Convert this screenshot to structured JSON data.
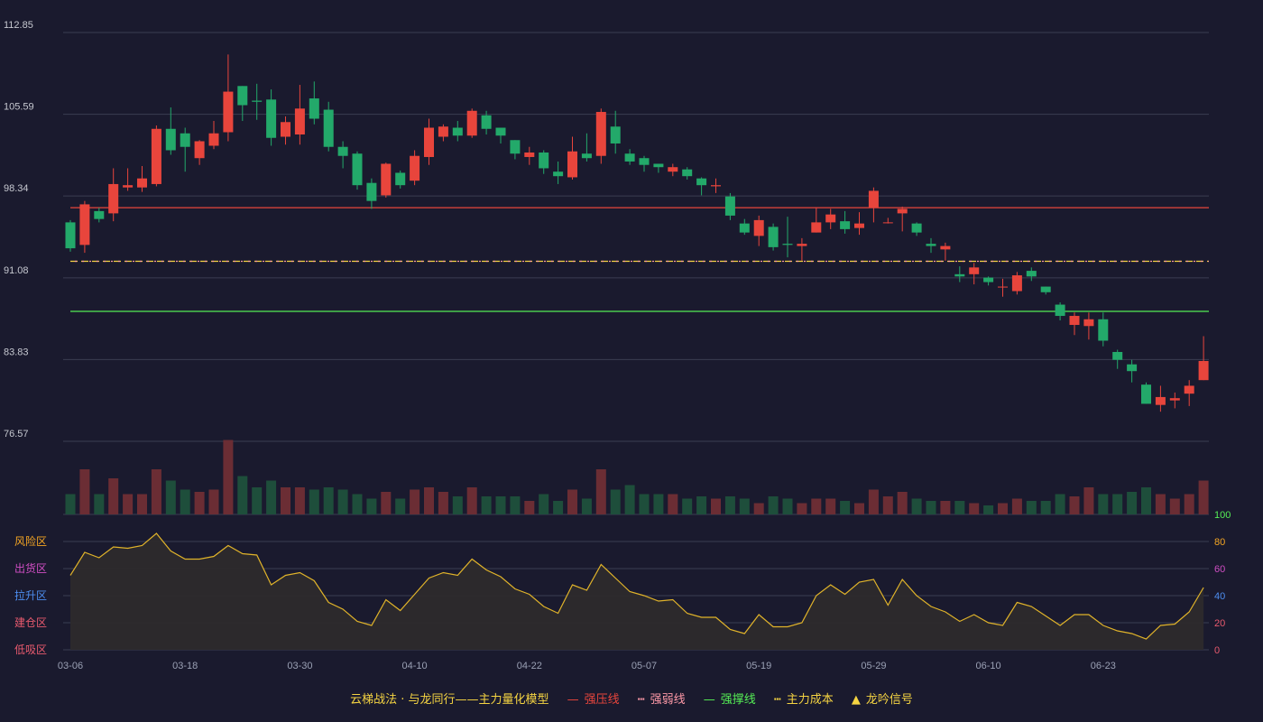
{
  "chart_data": {
    "type": "candlestick",
    "price_axis": {
      "ticks": [
        "112.85",
        "105.59",
        "98.34",
        "91.08",
        "83.83",
        "76.57"
      ],
      "min": 76.57,
      "max": 112.85
    },
    "date_ticks": [
      {
        "label": "03-06",
        "index": 0
      },
      {
        "label": "03-18",
        "index": 8
      },
      {
        "label": "03-30",
        "index": 16
      },
      {
        "label": "04-10",
        "index": 24
      },
      {
        "label": "04-22",
        "index": 32
      },
      {
        "label": "05-07",
        "index": 40
      },
      {
        "label": "05-19",
        "index": 48
      },
      {
        "label": "05-29",
        "index": 56
      },
      {
        "label": "06-10",
        "index": 64
      },
      {
        "label": "06-23",
        "index": 72
      }
    ],
    "levels": [
      {
        "name": "强压线",
        "value": 97.3,
        "color": "#e8453c",
        "style": "solid"
      },
      {
        "name": "主力成本",
        "value": 92.55,
        "color": "#f5d442",
        "style": "dash"
      },
      {
        "name": "强弱线",
        "value": 92.55,
        "color": "#ff9aa8",
        "style": "dot"
      },
      {
        "name": "强撑线",
        "value": 88.1,
        "color": "#55ee55",
        "style": "solid"
      }
    ],
    "candles": [
      [
        96.0,
        93.7,
        96.2,
        93.4
      ],
      [
        94.0,
        97.6,
        97.9,
        93.3
      ],
      [
        97.0,
        96.3,
        97.3,
        96.0
      ],
      [
        96.8,
        99.4,
        100.8,
        96.1
      ],
      [
        99.1,
        99.3,
        100.8,
        98.8
      ],
      [
        99.1,
        99.9,
        101.0,
        98.7
      ],
      [
        99.4,
        104.3,
        104.6,
        99.2
      ],
      [
        104.3,
        102.4,
        106.2,
        102.0
      ],
      [
        103.9,
        102.7,
        104.4,
        100.5
      ],
      [
        101.7,
        103.2,
        103.3,
        101.1
      ],
      [
        102.8,
        103.9,
        105.0,
        102.5
      ],
      [
        104.0,
        107.6,
        110.9,
        103.2
      ],
      [
        108.1,
        106.4,
        108.1,
        105.0
      ],
      [
        106.8,
        106.7,
        108.3,
        105.1
      ],
      [
        106.9,
        103.5,
        107.8,
        102.8
      ],
      [
        103.6,
        104.9,
        105.4,
        102.9
      ],
      [
        103.8,
        106.1,
        108.2,
        102.9
      ],
      [
        107.0,
        105.2,
        108.5,
        104.7
      ],
      [
        106.0,
        102.7,
        106.7,
        102.3
      ],
      [
        102.7,
        101.9,
        103.2,
        100.8
      ],
      [
        102.1,
        99.3,
        102.3,
        98.9
      ],
      [
        99.5,
        97.9,
        99.9,
        97.2
      ],
      [
        98.4,
        101.2,
        101.3,
        98.2
      ],
      [
        100.4,
        99.3,
        100.6,
        99.0
      ],
      [
        99.7,
        101.9,
        102.4,
        99.3
      ],
      [
        101.8,
        104.4,
        105.2,
        101.1
      ],
      [
        103.6,
        104.5,
        104.7,
        103.2
      ],
      [
        104.4,
        103.7,
        105.0,
        103.2
      ],
      [
        103.7,
        105.9,
        106.1,
        103.5
      ],
      [
        105.5,
        104.3,
        105.9,
        103.8
      ],
      [
        104.4,
        103.7,
        104.4,
        103.0
      ],
      [
        103.3,
        102.1,
        103.3,
        101.6
      ],
      [
        101.8,
        102.2,
        102.7,
        101.1
      ],
      [
        102.2,
        100.8,
        102.4,
        100.3
      ],
      [
        100.5,
        100.1,
        101.4,
        99.4
      ],
      [
        100.0,
        102.3,
        103.6,
        99.8
      ],
      [
        102.1,
        101.7,
        103.9,
        101.4
      ],
      [
        101.9,
        105.8,
        106.1,
        101.2
      ],
      [
        104.5,
        103.0,
        105.9,
        102.1
      ],
      [
        102.1,
        101.4,
        102.5,
        101.1
      ],
      [
        101.7,
        101.1,
        101.9,
        100.5
      ],
      [
        101.2,
        100.9,
        101.2,
        100.4
      ],
      [
        100.5,
        100.9,
        101.2,
        100.1
      ],
      [
        100.7,
        100.1,
        100.9,
        99.8
      ],
      [
        99.9,
        99.3,
        100.0,
        98.4
      ],
      [
        99.2,
        99.3,
        99.9,
        98.6
      ],
      [
        98.3,
        96.6,
        98.6,
        96.2
      ],
      [
        95.9,
        95.1,
        96.3,
        94.9
      ],
      [
        94.8,
        96.2,
        96.6,
        93.9
      ],
      [
        95.6,
        93.8,
        95.9,
        93.5
      ],
      [
        94.1,
        94.0,
        96.5,
        92.9
      ],
      [
        93.9,
        94.1,
        94.6,
        92.6
      ],
      [
        95.1,
        96.0,
        97.3,
        95.1
      ],
      [
        96.0,
        96.7,
        97.2,
        95.4
      ],
      [
        96.1,
        95.4,
        97.0,
        95.0
      ],
      [
        95.5,
        95.9,
        96.9,
        94.9
      ],
      [
        97.3,
        98.8,
        99.1,
        96.0
      ],
      [
        96.0,
        96.0,
        96.4,
        95.9
      ],
      [
        96.8,
        97.2,
        97.4,
        95.2
      ],
      [
        95.9,
        95.1,
        96.0,
        94.8
      ],
      [
        94.1,
        93.9,
        94.6,
        93.3
      ],
      [
        93.6,
        93.9,
        94.2,
        92.6
      ],
      [
        91.4,
        91.2,
        92.1,
        90.7
      ],
      [
        91.4,
        92.0,
        92.4,
        90.5
      ],
      [
        91.1,
        90.7,
        91.2,
        90.4
      ],
      [
        90.3,
        90.3,
        91.0,
        89.4
      ],
      [
        89.9,
        91.3,
        91.6,
        89.6
      ],
      [
        91.7,
        91.2,
        92.0,
        90.8
      ],
      [
        90.3,
        89.8,
        90.3,
        89.6
      ],
      [
        88.7,
        87.7,
        88.9,
        87.3
      ],
      [
        86.9,
        87.7,
        88.0,
        86.0
      ],
      [
        86.8,
        87.4,
        88.0,
        85.6
      ],
      [
        87.4,
        85.5,
        88.0,
        85.0
      ],
      [
        84.5,
        83.8,
        84.7,
        83.0
      ],
      [
        83.4,
        82.8,
        83.8,
        81.8
      ],
      [
        81.6,
        79.9,
        81.8,
        79.9
      ],
      [
        79.8,
        80.5,
        81.5,
        79.2
      ],
      [
        80.2,
        80.4,
        80.9,
        79.5
      ],
      [
        80.8,
        81.5,
        82.0,
        79.7
      ],
      [
        82.0,
        83.7,
        85.9,
        82.0
      ]
    ],
    "volume": [
      9,
      20,
      9,
      16,
      9,
      9,
      20,
      15,
      11,
      10,
      11,
      33,
      17,
      12,
      15,
      12,
      12,
      11,
      12,
      11,
      9,
      7,
      10,
      7,
      11,
      12,
      10,
      8,
      12,
      8,
      8,
      8,
      6,
      9,
      6,
      11,
      7,
      20,
      11,
      13,
      9,
      9,
      9,
      7,
      8,
      7,
      8,
      7,
      5,
      8,
      7,
      5,
      7,
      7,
      6,
      5,
      11,
      8,
      10,
      7,
      6,
      6,
      6,
      5,
      4,
      5,
      7,
      6,
      6,
      9,
      8,
      12,
      9,
      9,
      10,
      12,
      9,
      7,
      9,
      15
    ],
    "risk_axis": {
      "ticks": [
        "0",
        "20",
        "40",
        "60",
        "80",
        "100"
      ],
      "min": 0,
      "max": 100
    },
    "risk_zones": [
      {
        "label": "风险区",
        "color": "#f5a623",
        "value": 80
      },
      {
        "label": "出货区",
        "color": "#d04ec4",
        "value": 60
      },
      {
        "label": "拉升区",
        "color": "#4d8ef0",
        "value": 40
      },
      {
        "label": "建仓区",
        "color": "#e85a6e",
        "value": 20
      },
      {
        "label": "低吸区",
        "color": "#e85a6e",
        "value": 0
      }
    ],
    "risk_line": [
      55,
      72,
      68,
      76,
      75,
      77,
      86,
      73,
      67,
      67,
      69,
      77,
      71,
      70,
      48,
      55,
      57,
      51,
      35,
      30,
      21,
      18,
      37,
      29,
      41,
      53,
      57,
      55,
      67,
      59,
      54,
      45,
      41,
      32,
      27,
      48,
      44,
      63,
      53,
      43,
      40,
      36,
      37,
      27,
      24,
      24,
      15,
      12,
      26,
      17,
      17,
      20,
      40,
      48,
      41,
      50,
      52,
      33,
      52,
      40,
      32,
      28,
      21,
      26,
      20,
      18,
      35,
      32,
      25,
      18,
      26,
      26,
      18,
      14,
      12,
      8,
      18,
      19,
      28,
      46
    ]
  },
  "legend": {
    "title": "云梯战法 · 与龙同行——主力量化模型",
    "items": [
      {
        "label": "强压线",
        "symbol": "—",
        "color": "#e8453c"
      },
      {
        "label": "强弱线",
        "symbol": "┅",
        "color": "#ff9aa8"
      },
      {
        "label": "强撑线",
        "symbol": "—",
        "color": "#55ee55"
      },
      {
        "label": "主力成本",
        "symbol": "┅",
        "color": "#f5d442"
      },
      {
        "label": "龙吟信号",
        "symbol": "▲",
        "color": "#f5d442"
      }
    ]
  },
  "colors": {
    "up": "#e8453c",
    "down": "#23a96a",
    "vol_up": "#6b2d34",
    "vol_down": "#1e4e3b",
    "grid": "#3a3d52",
    "risk_line": "#e0b32a",
    "risk_fill": "#2d2a2c"
  }
}
